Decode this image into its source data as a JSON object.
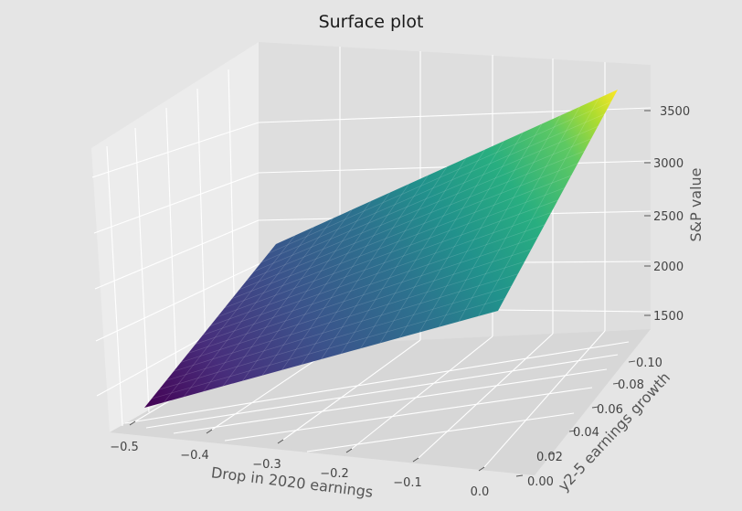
{
  "chart_data": {
    "type": "surface",
    "title": "Surface plot",
    "xlabel": "Drop in 2020 earnings",
    "ylabel": "y2-5 earnings growth",
    "zlabel": "S&P value",
    "x_ticks": [
      "−0.5",
      "−0.4",
      "−0.3",
      "−0.2",
      "−0.1",
      "0.0"
    ],
    "y_ticks": [
      "0.00",
      "0.02",
      "0.04",
      "0.06",
      "0.08",
      "0.10"
    ],
    "z_ticks": [
      "1500",
      "2000",
      "2500",
      "3000",
      "3500"
    ],
    "xlim": [
      -0.5,
      0.0
    ],
    "ylim": [
      0.0,
      0.1
    ],
    "zlim": [
      1300,
      3700
    ],
    "colormap": "viridis",
    "surface_corners": [
      {
        "x": -0.5,
        "y": 0.0,
        "z": 1000
      },
      {
        "x": 0.0,
        "y": 0.0,
        "z": 1950
      },
      {
        "x": -0.5,
        "y": 0.1,
        "z": 1800
      },
      {
        "x": 0.0,
        "y": 0.1,
        "z": 3750
      }
    ],
    "grid": true
  }
}
